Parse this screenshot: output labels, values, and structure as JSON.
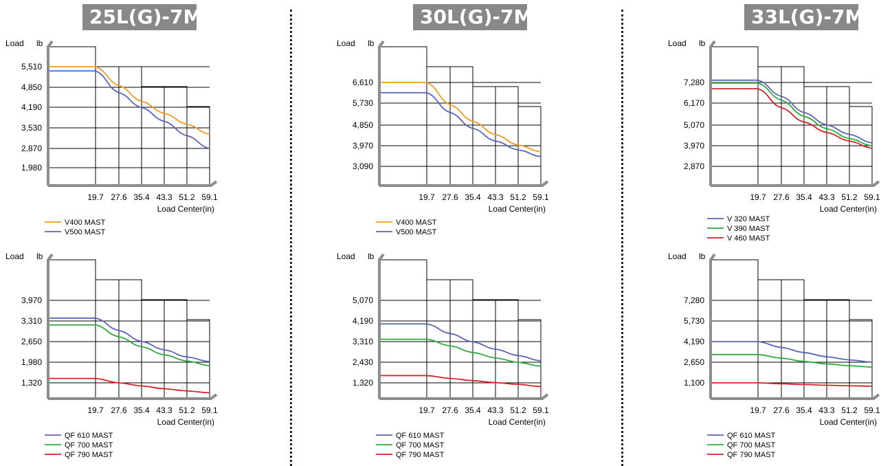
{
  "models": [
    "25L(G)-7M",
    "30L(G)-7M",
    "33L(G)-7M"
  ],
  "colors": {
    "orange": "#f29a1e",
    "blue": "#5b63b6",
    "green": "#2eaa3c",
    "red": "#d6202a",
    "axis": "#8c8c8c",
    "grid": "#000000"
  },
  "chart_data": [
    {
      "type": "line",
      "model": "25L(G)-7M",
      "ylabel": "Load",
      "yunit": "lb",
      "xlabel": "Load Center(in)",
      "x": [
        19.7,
        27.6,
        35.4,
        43.3,
        51.2,
        59.1
      ],
      "yticks": [
        "5,510",
        "4,850",
        "4,190",
        "3,530",
        "2,870",
        "1,980"
      ],
      "series": [
        {
          "name": "V400 MAST",
          "color": "orange",
          "values": [
            5510,
            4850,
            4300,
            3880,
            3500,
            3150
          ]
        },
        {
          "name": "V500 MAST",
          "color": "blue",
          "values": [
            5360,
            4600,
            4080,
            3600,
            3100,
            2650
          ]
        }
      ]
    },
    {
      "type": "line",
      "model": "30L(G)-7M",
      "ylabel": "Load",
      "yunit": "lb",
      "xlabel": "Load Center(in)",
      "x": [
        19.7,
        27.6,
        35.4,
        43.3,
        51.2,
        59.1
      ],
      "yticks": [
        "6,610",
        "5,730",
        "4,850",
        "3,970",
        "3,090"
      ],
      "series": [
        {
          "name": "V400 MAST",
          "color": "orange",
          "values": [
            6610,
            5680,
            4980,
            4420,
            3980,
            3700
          ]
        },
        {
          "name": "V500 MAST",
          "color": "blue",
          "values": [
            6180,
            5350,
            4680,
            4150,
            3780,
            3500
          ]
        }
      ]
    },
    {
      "type": "line",
      "model": "33L(G)-7M",
      "ylabel": "Load",
      "yunit": "lb",
      "xlabel": "Load Center(in)",
      "x": [
        19.7,
        27.6,
        35.4,
        43.3,
        51.2,
        59.1
      ],
      "yticks": [
        "7,280",
        "6,170",
        "5,070",
        "3,970",
        "2,870"
      ],
      "series": [
        {
          "name": "V 320 MAST",
          "color": "blue",
          "values": [
            7400,
            6550,
            5700,
            5050,
            4550,
            4100
          ]
        },
        {
          "name": "V 390 MAST",
          "color": "green",
          "values": [
            7250,
            6350,
            5500,
            4850,
            4330,
            3950
          ]
        },
        {
          "name": "V 460 MAST",
          "color": "red",
          "values": [
            6950,
            5950,
            5200,
            4650,
            4200,
            3820
          ]
        }
      ]
    },
    {
      "type": "line",
      "model": "25L(G)-7M",
      "ylabel": "Load",
      "yunit": "lb",
      "xlabel": "Load Center(in)",
      "x": [
        19.7,
        27.6,
        35.4,
        43.3,
        51.2,
        59.1
      ],
      "yticks": [
        "3,970",
        "3,310",
        "2,650",
        "1,980",
        "1,320"
      ],
      "series": [
        {
          "name": "QF 610 MAST",
          "color": "blue",
          "values": [
            3400,
            3000,
            2650,
            2380,
            2150,
            2000
          ]
        },
        {
          "name": "QF 700 MAST",
          "color": "green",
          "values": [
            3180,
            2800,
            2480,
            2220,
            2020,
            1870
          ]
        },
        {
          "name": "QF 790 MAST",
          "color": "red",
          "values": [
            1460,
            1320,
            1220,
            1130,
            1060,
            1000
          ]
        }
      ]
    },
    {
      "type": "line",
      "model": "30L(G)-7M",
      "ylabel": "Load",
      "yunit": "lb",
      "xlabel": "Load Center(in)",
      "x": [
        19.7,
        27.6,
        35.4,
        43.3,
        51.2,
        59.1
      ],
      "yticks": [
        "5,070",
        "4,190",
        "3,310",
        "2,430",
        "1,320"
      ],
      "series": [
        {
          "name": "QF 610 MAST",
          "color": "blue",
          "values": [
            4000,
            3560,
            3180,
            2850,
            2560,
            2320
          ]
        },
        {
          "name": "QF 700 MAST",
          "color": "green",
          "values": [
            3300,
            3000,
            2700,
            2450,
            2250,
            2080
          ]
        },
        {
          "name": "QF 790 MAST",
          "color": "red",
          "values": [
            1650,
            1520,
            1420,
            1330,
            1250,
            1150
          ]
        }
      ]
    },
    {
      "type": "line",
      "model": "33L(G)-7M",
      "ylabel": "Load",
      "yunit": "lb",
      "xlabel": "Load Center(in)",
      "x": [
        19.7,
        27.6,
        35.4,
        43.3,
        51.2,
        59.1
      ],
      "yticks": [
        "7,280",
        "5,730",
        "4,190",
        "2,650",
        "1,100"
      ],
      "series": [
        {
          "name": "QF 610 MAST",
          "color": "blue",
          "values": [
            4190,
            3750,
            3370,
            3050,
            2820,
            2650
          ]
        },
        {
          "name": "QF 700 MAST",
          "color": "green",
          "values": [
            3220,
            2950,
            2700,
            2520,
            2380,
            2280
          ]
        },
        {
          "name": "QF 790 MAST",
          "color": "red",
          "values": [
            1100,
            1030,
            970,
            920,
            880,
            850
          ]
        }
      ]
    }
  ]
}
